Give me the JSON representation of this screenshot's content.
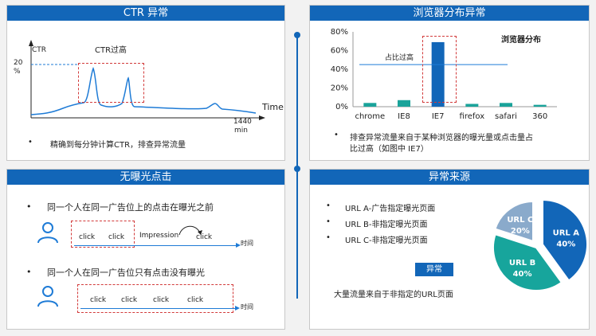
{
  "ctr": {
    "title": "CTR 异常",
    "y_label": "CTR",
    "y_tick_top": "20",
    "y_tick_bottom": "%",
    "x_label": "Time",
    "x_end_top": "1440",
    "x_end_bottom": "min",
    "annotation": "CTR过高",
    "bullet": "精确到每分钟计算CTR，排查异常流量"
  },
  "browser": {
    "title": "浏览器分布异常",
    "legend": "浏览器分布",
    "annotation": "占比过高",
    "bullet_line1": "排查异常流量来自于某种浏览器的曝光量或点击量占",
    "bullet_line2": "比过高（如图中 IE7）",
    "chart_data": {
      "type": "bar",
      "categories": [
        "chrome",
        "IE8",
        "IE7",
        "firefox",
        "safari",
        "360"
      ],
      "values": [
        4,
        7,
        69,
        3,
        4,
        2
      ],
      "yticks": [
        "0%",
        "20%",
        "40%",
        "60%",
        "80%"
      ],
      "ylim": [
        0,
        80
      ],
      "reference_line": 45,
      "highlight_color": "#1266b8",
      "bar_color": "#1aa39a"
    }
  },
  "noimp": {
    "title": "无曝光点击",
    "bullet1": "同一个人在同一广告位上的点击在曝光之前",
    "bullet2": "同一个人在同一广告位只有点击没有曝光",
    "click": "click",
    "impression": "Impression",
    "time": "时间"
  },
  "source": {
    "title": "异常来源",
    "items": [
      "URL A-广告指定曝光页面",
      "URL B-非指定曝光页面",
      "URL C-非指定曝光页面"
    ],
    "badge": "异常",
    "caption": "大量流量来自于非指定的URL页面",
    "pie": [
      {
        "name": "URL A",
        "pct": "40%",
        "value": 40,
        "color": "#1266b8"
      },
      {
        "name": "URL B",
        "pct": "40%",
        "value": 40,
        "color": "#17a59c"
      },
      {
        "name": "URL C",
        "pct": "20%",
        "value": 20,
        "color": "#8aaacb"
      }
    ]
  }
}
